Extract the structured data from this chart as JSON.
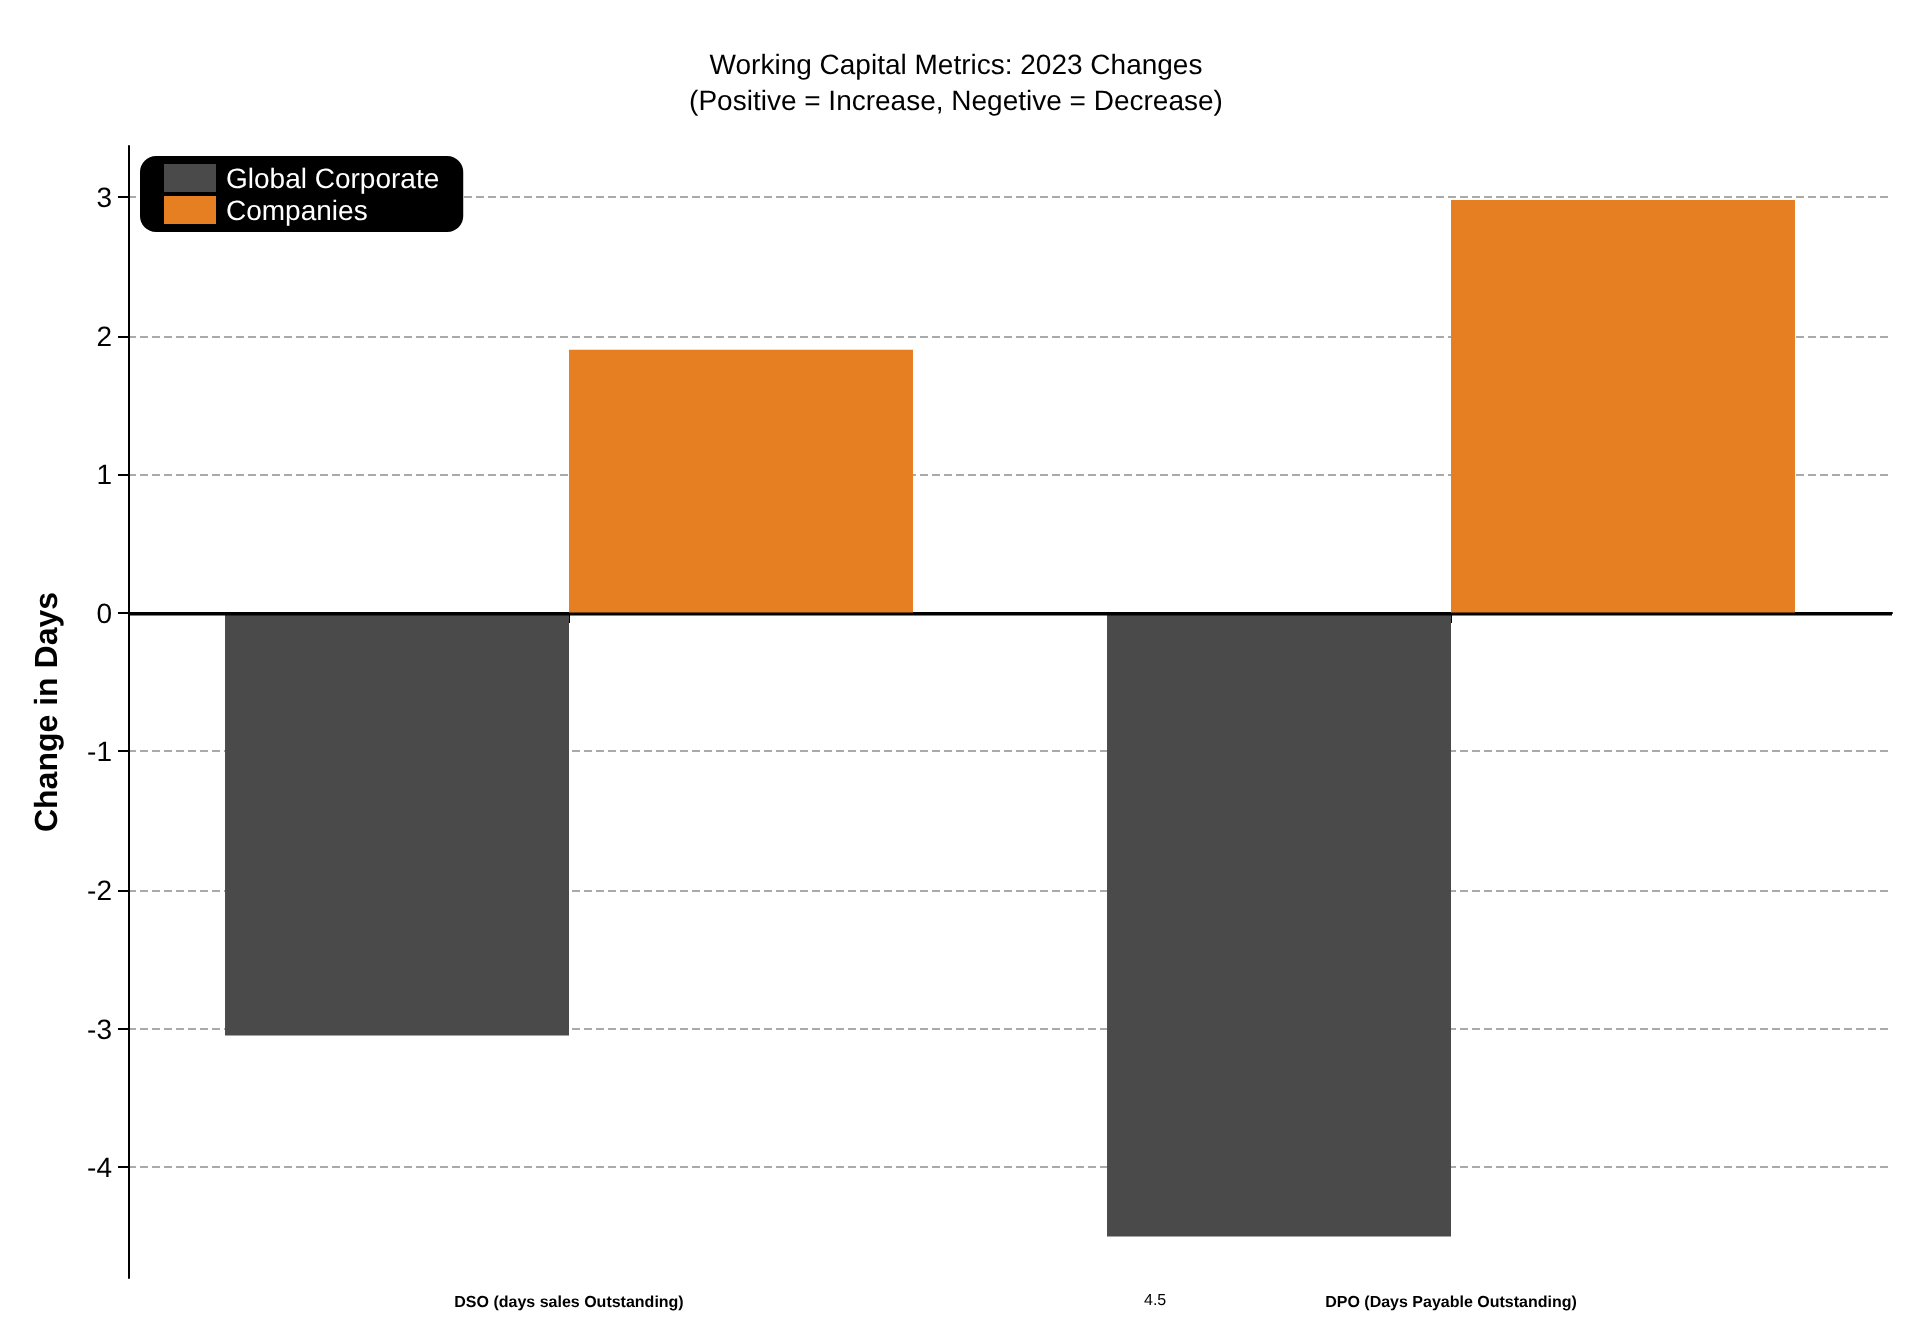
{
  "chart_data": {
    "type": "bar",
    "title": "Working Capital Metrics: 2023 Changes\n(Positive = Increase, Negetive = Decrease)",
    "ylabel": "Change in Days",
    "categories": [
      "DSO (days sales Outstanding)",
      "DPO (Days Payable Outstanding)"
    ],
    "series": [
      {
        "name": "Global Corporate",
        "color": "#4a4a4a",
        "values": [
          -3.05,
          -4.5
        ]
      },
      {
        "name": "Companies",
        "color": "#e67e22",
        "values": [
          1.9,
          2.98
        ]
      }
    ],
    "ylim": [
      -4.8,
      3.37
    ],
    "yticks": [
      -4,
      -3,
      -2,
      -1,
      0,
      1,
      2,
      3
    ],
    "grid": "y",
    "legend": "top left",
    "ref_lines": [
      {
        "axis": "y",
        "value": 0,
        "color": "#000000"
      }
    ],
    "annotations": [
      "4.5"
    ]
  }
}
